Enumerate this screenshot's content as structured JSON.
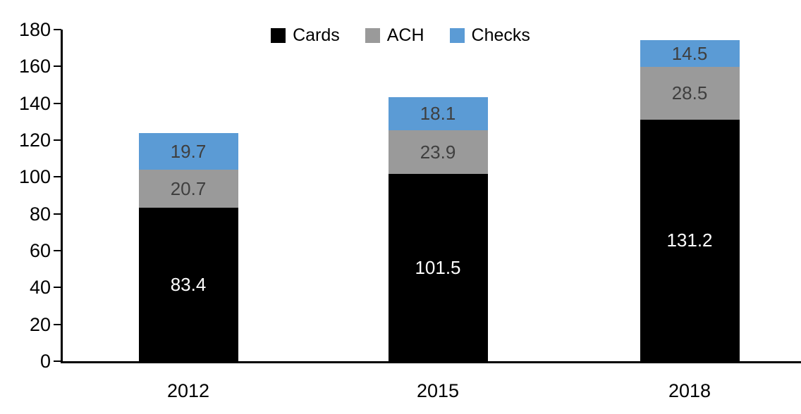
{
  "chart_data": {
    "type": "bar",
    "stacked": true,
    "title": "",
    "xlabel": "",
    "ylabel": "",
    "categories": [
      "2012",
      "2015",
      "2018"
    ],
    "series": [
      {
        "name": "Cards",
        "color": "#000000",
        "label_color": "#ffffff",
        "values": [
          83.4,
          101.5,
          131.2
        ]
      },
      {
        "name": "ACH",
        "color": "#9a9a9a",
        "label_color": "#3f3f3f",
        "values": [
          20.7,
          23.9,
          28.5
        ]
      },
      {
        "name": "Checks",
        "color": "#5b9bd5",
        "label_color": "#3f3f3f",
        "values": [
          19.7,
          18.1,
          14.5
        ]
      }
    ],
    "totals": [
      123.8,
      143.5,
      174.2
    ],
    "ylim": [
      0,
      180
    ],
    "y_ticks": [
      0,
      20,
      40,
      60,
      80,
      100,
      120,
      140,
      160,
      180
    ],
    "grid": false,
    "legend_position": "top",
    "axis_color": "#000000",
    "background_color": "#ffffff"
  }
}
